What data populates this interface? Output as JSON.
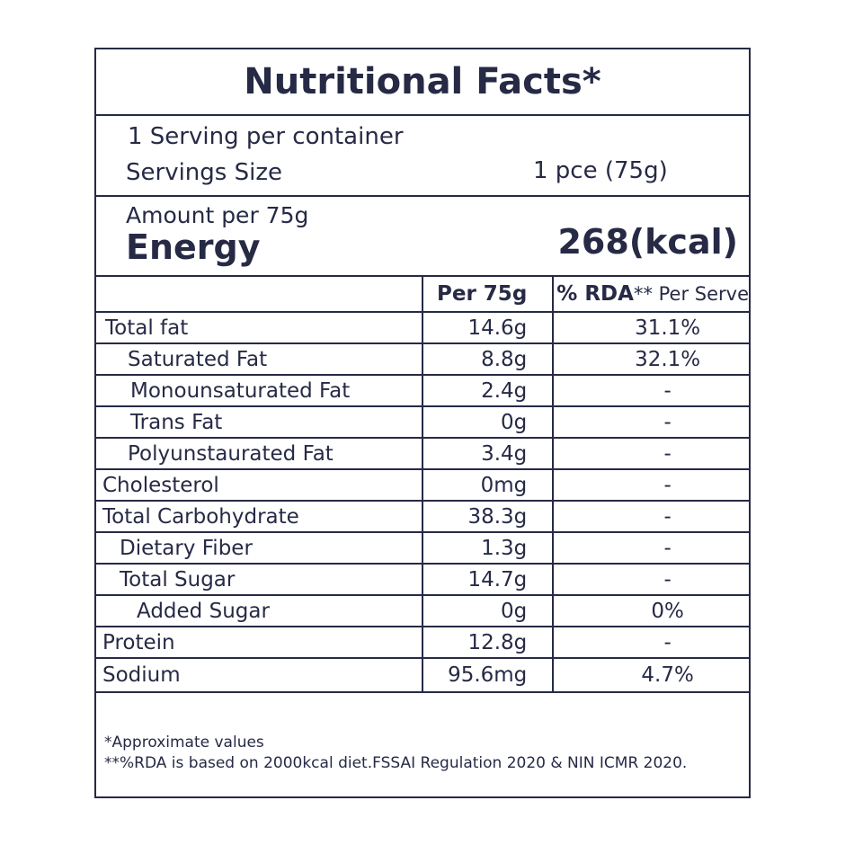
{
  "title": "Nutritional Facts*",
  "serving": {
    "per_container": "1 Serving per container",
    "size_label": "Servings Size",
    "size_value": "1 pce (75g)"
  },
  "energy": {
    "amount_per": "Amount per 75g",
    "label": "Energy",
    "value": "268(kcal)"
  },
  "table": {
    "headers": {
      "col1": "",
      "col2": "Per 75g",
      "col3_bold": "% RDA",
      "col3_sup": "**",
      "col3_rest": " Per Serve"
    },
    "rows": [
      {
        "name": "Total fat",
        "per": "14.6g",
        "rda": "31.1%"
      },
      {
        "name": "Saturated Fat",
        "per": "8.8g",
        "rda": "32.1%"
      },
      {
        "name": "Monounsaturated Fat",
        "per": "2.4g",
        "rda": "-"
      },
      {
        "name": "Trans Fat",
        "per": "0g",
        "rda": "-"
      },
      {
        "name": "Polyunstaurated Fat",
        "per": "3.4g",
        "rda": "-"
      },
      {
        "name": "Cholesterol",
        "per": "0mg",
        "rda": "-"
      },
      {
        "name": "Total Carbohydrate",
        "per": "38.3g",
        "rda": "-"
      },
      {
        "name": "Dietary Fiber",
        "per": "1.3g",
        "rda": "-"
      },
      {
        "name": "Total Sugar",
        "per": "14.7g",
        "rda": "-"
      },
      {
        "name": "Added Sugar",
        "per": "0g",
        "rda": "0%"
      },
      {
        "name": "Protein",
        "per": "12.8g",
        "rda": "-"
      },
      {
        "name": "Sodium",
        "per": "95.6mg",
        "rda": "4.7%"
      }
    ]
  },
  "footnotes": {
    "note1": "*Approximate values",
    "note2": "**%RDA is based on 2000kcal diet.FSSAI Regulation 2020 & NIN ICMR 2020."
  },
  "colors": {
    "ink": "#262a45",
    "background": "#ffffff"
  }
}
